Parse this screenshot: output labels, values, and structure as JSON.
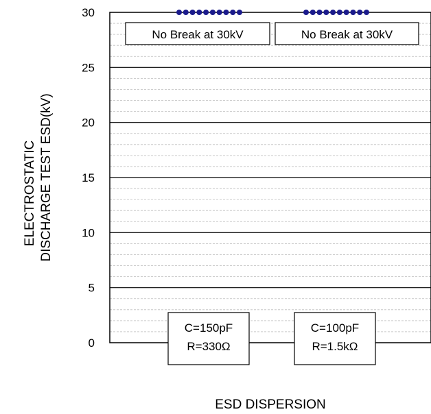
{
  "chart_data": {
    "type": "scatter",
    "xlabel": "ESD DISPERSION",
    "ylabel_lines": [
      "ELECTROSTATIC",
      "DISCHARGE TEST ESD(kV)"
    ],
    "ylim": [
      0,
      30
    ],
    "yticks": [
      0,
      5,
      10,
      15,
      20,
      25,
      30
    ],
    "categories": [
      "C=150pF R=330Ω",
      "C=100pF R=1.5kΩ"
    ],
    "series": [
      {
        "color": "#1a1a8c",
        "points": [
          {
            "group": 0,
            "y": 30
          },
          {
            "group": 0,
            "y": 30
          },
          {
            "group": 0,
            "y": 30
          },
          {
            "group": 0,
            "y": 30
          },
          {
            "group": 0,
            "y": 30
          },
          {
            "group": 0,
            "y": 30
          },
          {
            "group": 0,
            "y": 30
          },
          {
            "group": 0,
            "y": 30
          },
          {
            "group": 0,
            "y": 30
          },
          {
            "group": 0,
            "y": 30
          },
          {
            "group": 1,
            "y": 30
          },
          {
            "group": 1,
            "y": 30
          },
          {
            "group": 1,
            "y": 30
          },
          {
            "group": 1,
            "y": 30
          },
          {
            "group": 1,
            "y": 30
          },
          {
            "group": 1,
            "y": 30
          },
          {
            "group": 1,
            "y": 30
          },
          {
            "group": 1,
            "y": 30
          },
          {
            "group": 1,
            "y": 30
          },
          {
            "group": 1,
            "y": 30
          }
        ]
      }
    ],
    "annotations": {
      "top": [
        "No Break at 30kV",
        "No Break at 30kV"
      ],
      "bottom": [
        [
          "C=150pF",
          "R=330Ω"
        ],
        [
          "C=100pF",
          "R=1.5kΩ"
        ]
      ]
    },
    "grid": {
      "major": true,
      "minor": true,
      "minor_step": 1
    }
  }
}
